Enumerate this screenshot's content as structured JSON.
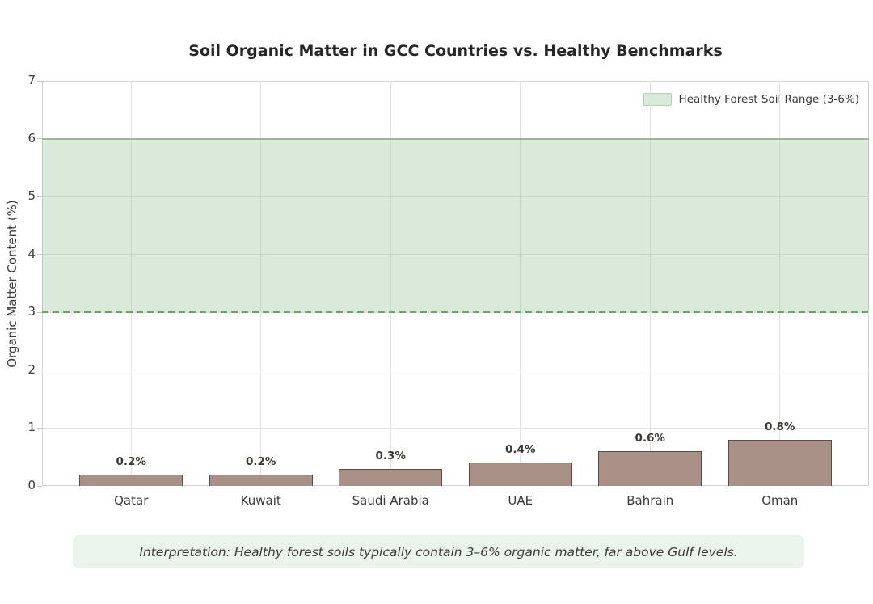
{
  "chart_data": {
    "type": "bar",
    "title": "Soil Organic Matter in GCC Countries vs. Healthy Benchmarks",
    "categories": [
      "Qatar",
      "Kuwait",
      "Saudi Arabia",
      "UAE",
      "Bahrain",
      "Oman"
    ],
    "values": [
      0.2,
      0.2,
      0.3,
      0.4,
      0.6,
      0.8
    ],
    "bar_labels": [
      "0.2%",
      "0.2%",
      "0.3%",
      "0.4%",
      "0.6%",
      "0.8%"
    ],
    "xlabel": "",
    "ylabel": "Organic Matter Content (%)",
    "ylim": [
      0,
      7
    ],
    "yticks": [
      0,
      1,
      2,
      3,
      4,
      5,
      6,
      7
    ],
    "grid": true,
    "legend_position": "upper right",
    "benchmark_band": {
      "from": 3,
      "to": 6,
      "label": "Healthy Forest Soil Range (3-6%)",
      "fill_color": "#d8ead9",
      "upper_line_color": "#9ab79a",
      "lower_dashed_line_color": "#69a569"
    },
    "bar_color": "#a89086",
    "bar_edge_color": "#5d4a40",
    "annotation": "Interpretation: Healthy forest soils typically contain 3–6% organic matter, far above Gulf levels."
  },
  "legend": {
    "label": "Healthy Forest Soil Range (3-6%)"
  }
}
